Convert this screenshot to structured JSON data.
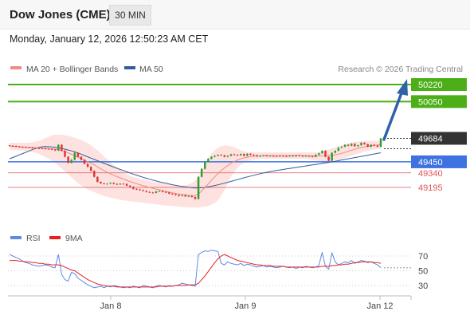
{
  "header": {
    "title": "Dow Jones (CME)",
    "timeframe": "30 MIN"
  },
  "datetime": "Monday, January 12, 2026 12:50:23 AM CET",
  "attribution": "Research © 2026 Trading Central",
  "colors": {
    "ma20_bollinger": "#f28b82",
    "ma50": "#2f5e9e",
    "resistance": "#4caf17",
    "support": "#3d72e0",
    "support_minor": "#e0545a",
    "up_candle": "#2e9e2e",
    "down_candle": "#d93535",
    "rsi": "#5b8be6",
    "rsi_ma": "#e82020",
    "arrow": "#2f62a8"
  },
  "chart_data": [
    {
      "type": "candlestick",
      "title": "",
      "legend": [
        {
          "name": "MA 20 + Bollinger Bands",
          "color": "#f28b82"
        },
        {
          "name": "MA 50",
          "color": "#2f5e9e"
        }
      ],
      "x_ticks": [
        "Jan 8",
        "Jan 9",
        "Jan 12"
      ],
      "levels": [
        {
          "label": "50220",
          "value": 50220,
          "kind": "resistance"
        },
        {
          "label": "50050",
          "value": 50050,
          "kind": "resistance"
        },
        {
          "label": "49684",
          "value": 49684,
          "kind": "last"
        },
        {
          "label": "49450",
          "value": 49450,
          "kind": "support"
        },
        {
          "label": "49340",
          "value": 49340,
          "kind": "support_minor"
        },
        {
          "label": "49195",
          "value": 49195,
          "kind": "support_minor"
        }
      ],
      "y_range": [
        48950,
        50320
      ],
      "close": [
        49610,
        49608,
        49602,
        49598,
        49596,
        49594,
        49592,
        49588,
        49585,
        49584,
        49582,
        49580,
        49578,
        49572,
        49563,
        49620,
        49560,
        49500,
        49440,
        49470,
        49540,
        49500,
        49470,
        49430,
        49400,
        49360,
        49300,
        49250,
        49235,
        49230,
        49232,
        49240,
        49230,
        49226,
        49232,
        49230,
        49212,
        49200,
        49180,
        49175,
        49168,
        49160,
        49150,
        49145,
        49140,
        49155,
        49160,
        49150,
        49145,
        49132,
        49128,
        49120,
        49110,
        49118,
        49105,
        49110,
        49100,
        49080,
        49300,
        49380,
        49450,
        49480,
        49500,
        49510,
        49520,
        49515,
        49500,
        49510,
        49525,
        49520,
        49515,
        49528,
        49510,
        49530,
        49520,
        49515,
        49505,
        49510,
        49515,
        49508,
        49510,
        49508,
        49505,
        49510,
        49508,
        49505,
        49512,
        49505,
        49515,
        49510,
        49505,
        49510,
        49505,
        49500,
        49520,
        49535,
        49560,
        49500,
        49460,
        49540,
        49560,
        49590,
        49600,
        49620,
        49610,
        49630,
        49605,
        49615,
        49640,
        49625,
        49600,
        49620,
        49612,
        49600,
        49684
      ],
      "ma20": [
        49606,
        49604,
        49602,
        49600,
        49598,
        49596,
        49594,
        49592,
        49590,
        49588,
        49586,
        49584,
        49582,
        49579,
        49576,
        49570,
        49562,
        49552,
        49540,
        49525,
        49510,
        49495,
        49480,
        49466,
        49452,
        49436,
        49420,
        49400,
        49380,
        49363,
        49347,
        49330,
        49316,
        49302,
        49290,
        49278,
        49266,
        49254,
        49243,
        49232,
        49222,
        49212,
        49203,
        49194,
        49186,
        49178,
        49170,
        49162,
        49155,
        49148,
        49141,
        49135,
        49130,
        49126,
        49122,
        49118,
        49115,
        49112,
        49130,
        49160,
        49195,
        49230,
        49265,
        49300,
        49333,
        49364,
        49390,
        49414,
        49435,
        49453,
        49468,
        49480,
        49490,
        49497,
        49502,
        49505,
        49507,
        49509,
        49510,
        49511,
        49511,
        49511,
        49511,
        49511,
        49511,
        49511,
        49511,
        49511,
        49511,
        49511,
        49511,
        49510,
        49510,
        49509,
        49508,
        49508,
        49510,
        49512,
        49514,
        49516,
        49520,
        49527,
        49535,
        49545,
        49555,
        49565,
        49575,
        49584,
        49592,
        49599,
        49605,
        49610,
        49614,
        49617,
        49622
      ],
      "ma50": [
        49480,
        49493,
        49506,
        49519,
        49532,
        49545,
        49558,
        49571,
        49584,
        49594,
        49600,
        49602,
        49601,
        49598,
        49594,
        49589,
        49583,
        49576,
        49568,
        49559,
        49549,
        49538,
        49526,
        49513,
        49500,
        49487,
        49474,
        49461,
        49448,
        49435,
        49422,
        49410,
        49398,
        49386,
        49374,
        49362,
        49350,
        49339,
        49328,
        49317,
        49306,
        49296,
        49286,
        49277,
        49268,
        49259,
        49251,
        49243,
        49236,
        49229,
        49222,
        49216,
        49210,
        49205,
        49200,
        49196,
        49192,
        49189,
        49190,
        49192,
        49196,
        49201,
        49207,
        49214,
        49221,
        49229,
        49237,
        49246,
        49255,
        49264,
        49273,
        49282,
        49291,
        49300,
        49308,
        49316,
        49324,
        49332,
        49339,
        49346,
        49352,
        49358,
        49364,
        49369,
        49374,
        49379,
        49384,
        49389,
        49394,
        49399,
        49404,
        49409,
        49414,
        49419,
        49424,
        49429,
        49434,
        49439,
        49444,
        49450,
        49456,
        49462,
        49468,
        49474,
        49480,
        49486,
        49492,
        49498,
        49504,
        49510,
        49516,
        49522,
        49528,
        49534,
        49540
      ],
      "bb_upper": [
        49640,
        49640,
        49640,
        49640,
        49640,
        49640,
        49642,
        49645,
        49652,
        49660,
        49670,
        49685,
        49700,
        49712,
        49720,
        49722,
        49720,
        49715,
        49708,
        49700,
        49690,
        49680,
        49668,
        49652,
        49635,
        49615,
        49590,
        49565,
        49535,
        49505,
        49475,
        49445,
        49415,
        49390,
        49365,
        49345,
        49325,
        49310,
        49298,
        49288,
        49280,
        49272,
        49265,
        49258,
        49252,
        49246,
        49240,
        49234,
        49228,
        49222,
        49216,
        49212,
        49210,
        49210,
        49215,
        49225,
        49240,
        49265,
        49300,
        49360,
        49430,
        49485,
        49530,
        49565,
        49590,
        49605,
        49612,
        49612,
        49605,
        49595,
        49580,
        49565,
        49555,
        49548,
        49545,
        49544,
        49544,
        49544,
        49544,
        49544,
        49544,
        49544,
        49544,
        49544,
        49544,
        49544,
        49544,
        49544,
        49544,
        49544,
        49544,
        49544,
        49544,
        49544,
        49544,
        49548,
        49555,
        49565,
        49575,
        49585,
        49595,
        49605,
        49615,
        49625,
        49635,
        49642,
        49648,
        49652,
        49655,
        49657,
        49658,
        49659,
        49660,
        49660,
        49660
      ],
      "bb_lower": [
        49570,
        49568,
        49566,
        49564,
        49562,
        49560,
        49556,
        49550,
        49540,
        49528,
        49514,
        49498,
        49480,
        49460,
        49438,
        49412,
        49385,
        49355,
        49325,
        49295,
        49265,
        49238,
        49215,
        49195,
        49178,
        49162,
        49148,
        49135,
        49122,
        49110,
        49100,
        49092,
        49085,
        49078,
        49072,
        49067,
        49062,
        49058,
        49054,
        49050,
        49046,
        49042,
        49038,
        49034,
        49030,
        49026,
        49022,
        49018,
        49015,
        49012,
        49009,
        49006,
        49003,
        49000,
        48998,
        48996,
        48995,
        48995,
        48996,
        48998,
        49002,
        49010,
        49022,
        49040,
        49068,
        49110,
        49170,
        49240,
        49300,
        49350,
        49390,
        49420,
        49440,
        49455,
        49465,
        49472,
        49476,
        49478,
        49479,
        49480,
        49480,
        49480,
        49480,
        49480,
        49480,
        49480,
        49480,
        49480,
        49480,
        49480,
        49480,
        49478,
        49475,
        49470,
        49465,
        49460,
        49457,
        49456,
        49457,
        49460,
        49465,
        49472,
        49480,
        49490,
        49500,
        49510,
        49520,
        49530,
        49540,
        49550,
        49558,
        49566,
        49573,
        49579,
        49584
      ]
    },
    {
      "type": "line",
      "title": "",
      "legend": [
        {
          "name": "RSI",
          "color": "#5b8be6"
        },
        {
          "name": "9MA",
          "color": "#e82020"
        }
      ],
      "y_ticks": [
        70,
        50,
        30
      ],
      "y_range": [
        15,
        85
      ],
      "rsi": [
        72,
        70,
        68,
        66,
        63,
        61,
        60,
        58,
        57,
        56,
        57,
        58,
        57,
        55,
        54,
        72,
        45,
        38,
        36,
        48,
        46,
        40,
        37,
        34,
        31,
        29,
        27,
        28,
        29,
        27,
        29,
        28,
        30,
        29,
        28,
        27,
        28,
        27,
        29,
        28,
        27,
        30,
        29,
        28,
        27,
        29,
        30,
        29,
        28,
        30,
        29,
        30,
        31,
        33,
        32,
        31,
        30,
        29,
        72,
        75,
        77,
        76,
        78,
        77,
        76,
        60,
        58,
        62,
        60,
        59,
        58,
        60,
        57,
        59,
        58,
        56,
        55,
        56,
        57,
        55,
        56,
        55,
        54,
        55,
        56,
        55,
        54,
        55,
        53,
        55,
        54,
        56,
        55,
        54,
        55,
        57,
        75,
        56,
        52,
        74,
        62,
        58,
        60,
        62,
        61,
        64,
        60,
        62,
        64,
        63,
        61,
        62,
        60,
        58,
        54
      ],
      "ma9": [
        64,
        64,
        64,
        63,
        63,
        62,
        62,
        61,
        61,
        60,
        60,
        59,
        59,
        58,
        58,
        58,
        57,
        55,
        53,
        51,
        50,
        47,
        44,
        41,
        38,
        36,
        34,
        32,
        31,
        30,
        29,
        29,
        29,
        28,
        28,
        28,
        28,
        28,
        28,
        28,
        28,
        28,
        28,
        28,
        28,
        28,
        29,
        29,
        29,
        29,
        29,
        30,
        30,
        30,
        30,
        31,
        31,
        31,
        33,
        38,
        43,
        49,
        55,
        61,
        66,
        70,
        72,
        70,
        68,
        66,
        64,
        63,
        62,
        61,
        60,
        59,
        58,
        58,
        57,
        57,
        57,
        56,
        56,
        56,
        56,
        55,
        55,
        55,
        55,
        55,
        55,
        55,
        55,
        55,
        55,
        55,
        56,
        56,
        56,
        57,
        57,
        58,
        58,
        59,
        59,
        60,
        61,
        61,
        62,
        62,
        62,
        62,
        61,
        61,
        60
      ]
    }
  ]
}
